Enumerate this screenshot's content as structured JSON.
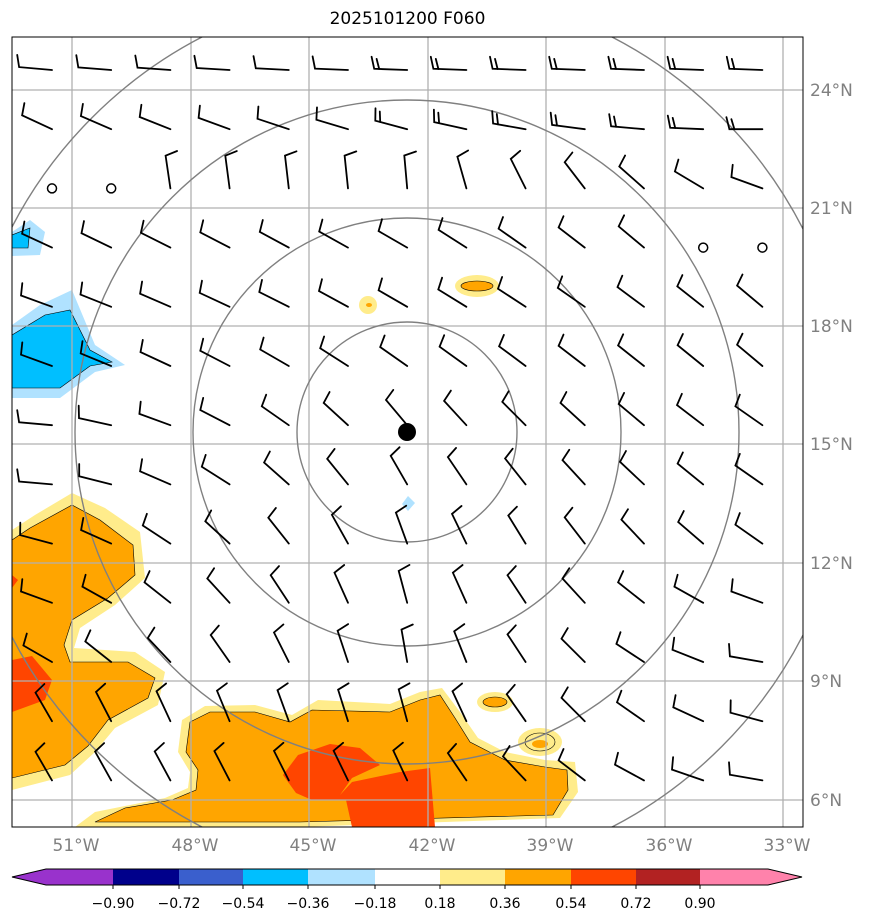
{
  "title": "2025101200 F060",
  "lon_labels": [
    "51°W",
    "48°W",
    "45°W",
    "42°W",
    "39°W",
    "36°W",
    "33°W"
  ],
  "lat_labels": [
    "24°N",
    "21°N",
    "18°N",
    "15°N",
    "12°N",
    "9°N",
    "6°N"
  ],
  "colorbar": {
    "labels": [
      "−0.90",
      "−0.72",
      "−0.54",
      "−0.36",
      "−0.18",
      "0.18",
      "0.36",
      "0.54",
      "0.72",
      "0.90"
    ],
    "colors": [
      "#9932cc",
      "#00008b",
      "#3a5fcd",
      "#00bfff",
      "#b0e2ff",
      "#ffffff",
      "#ffec8b",
      "#ffa500",
      "#ff4500",
      "#b22222",
      "#ff82ab"
    ]
  },
  "center_marker": {
    "lon": -42.5,
    "lat": 15.3
  },
  "wind_field": {
    "row_directions_west_center_east": [
      [
        275,
        272,
        272
      ],
      [
        295,
        285,
        270
      ],
      [
        350,
        355,
        290
      ],
      [
        295,
        300,
        315
      ],
      [
        290,
        300,
        310
      ],
      [
        290,
        305,
        310
      ],
      [
        275,
        320,
        305
      ],
      [
        275,
        330,
        305
      ],
      [
        285,
        340,
        305
      ],
      [
        290,
        345,
        290
      ],
      [
        300,
        350,
        280
      ],
      [
        330,
        345,
        285
      ],
      [
        330,
        335,
        280
      ]
    ],
    "calm_points": [
      [
        2,
        0
      ],
      [
        2,
        1
      ],
      [
        3,
        11
      ],
      [
        3,
        12
      ]
    ]
  }
}
